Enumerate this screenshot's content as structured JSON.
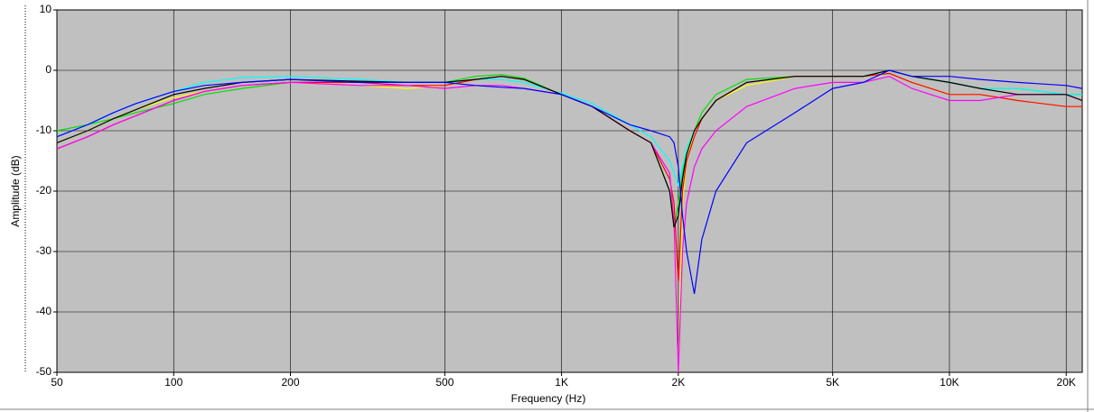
{
  "chart_data": {
    "type": "line",
    "xlabel": "Frequency (Hz)",
    "ylabel": "Amplitude (dB)",
    "xscale": "log",
    "grid": true,
    "background": "#c0c0c0",
    "xlim": [
      50,
      22000
    ],
    "ylim": [
      -50,
      10
    ],
    "xticks": [
      50,
      100,
      200,
      500,
      {
        "value": 1000,
        "label": "1K"
      },
      {
        "value": 2000,
        "label": "2K"
      },
      {
        "value": 5000,
        "label": "5K"
      },
      {
        "value": 10000,
        "label": "10K"
      },
      {
        "value": 20000,
        "label": "20K"
      }
    ],
    "yticks": [
      10,
      0,
      -10,
      -20,
      -30,
      -40,
      -50
    ],
    "x": [
      50,
      60,
      70,
      80,
      100,
      120,
      150,
      200,
      300,
      400,
      500,
      600,
      700,
      800,
      1000,
      1200,
      1500,
      1700,
      1900,
      1950,
      2000,
      2050,
      2100,
      2200,
      2300,
      2500,
      3000,
      4000,
      5000,
      6000,
      7000,
      8000,
      10000,
      12000,
      15000,
      20000,
      22000
    ],
    "series": [
      {
        "color": "#00e000",
        "values": [
          -10,
          -9,
          -8,
          -7,
          -5.5,
          -4,
          -3,
          -2,
          -2,
          -2,
          -2,
          -1,
          -0.7,
          -1.3,
          -4,
          -6,
          -10,
          -12,
          -20,
          -26,
          -22,
          -17,
          -13,
          -10,
          -7,
          -4,
          -1.5,
          -1,
          -1,
          -1,
          0,
          -1,
          -2,
          -3,
          -3,
          -4,
          -4
        ]
      },
      {
        "color": "#00ffff",
        "values": [
          -11,
          -9,
          -7,
          -5.5,
          -3.5,
          -2,
          -1.2,
          -1,
          -1.5,
          -2,
          -2,
          -1.5,
          -1.5,
          -2,
          -3.8,
          -5.5,
          -9,
          -11,
          -15,
          -17,
          -19,
          -16,
          -13,
          -10,
          -8,
          -5,
          -2,
          -1,
          -1,
          -1,
          0,
          -1,
          -2,
          -3,
          -3,
          -4,
          -4
        ]
      },
      {
        "color": "#ffff00",
        "values": [
          -12,
          -10,
          -8,
          -6.5,
          -4.5,
          -3.5,
          -2.5,
          -2,
          -2.5,
          -3,
          -2.5,
          -1.5,
          -1,
          -1.5,
          -4,
          -6,
          -10,
          -12,
          -18,
          -24,
          -50,
          -22,
          -15,
          -10,
          -8,
          -5,
          -2.5,
          -1,
          -1,
          -1,
          -0.5,
          -2,
          -4,
          -4,
          -5,
          -6,
          -6
        ]
      },
      {
        "color": "#ff0000",
        "values": [
          -13,
          -11,
          -9,
          -7.5,
          -5,
          -3.5,
          -2.5,
          -2,
          -2,
          -2.5,
          -2.5,
          -1.5,
          -1,
          -1.5,
          -4,
          -6,
          -10,
          -12,
          -18,
          -22,
          -35,
          -20,
          -15,
          -11,
          -8,
          -5,
          -2,
          -1,
          -1,
          -1,
          -0.5,
          -2,
          -4,
          -4,
          -5,
          -6,
          -6
        ]
      },
      {
        "color": "#ff00ff",
        "values": [
          -13,
          -11,
          -9,
          -7.5,
          -5,
          -3.5,
          -2.5,
          -2,
          -2.5,
          -2.5,
          -3,
          -2.5,
          -2.5,
          -3,
          -4,
          -6,
          -10,
          -12,
          -17,
          -25,
          -50,
          -30,
          -22,
          -16,
          -13,
          -10,
          -6,
          -3,
          -2,
          -2,
          -1,
          -3,
          -5,
          -5,
          -4,
          -4,
          -5
        ]
      },
      {
        "color": "#000000",
        "values": [
          -12,
          -10,
          -8,
          -6.5,
          -4,
          -3,
          -2,
          -1.5,
          -1.8,
          -2,
          -2,
          -1.5,
          -1,
          -1.5,
          -4,
          -6,
          -10,
          -12,
          -20,
          -26,
          -24,
          -18,
          -14,
          -10,
          -8,
          -5,
          -2,
          -1,
          -1,
          -1,
          0,
          -1,
          -2,
          -3,
          -4,
          -4,
          -5
        ]
      },
      {
        "color": "#0000ff",
        "values": [
          -11,
          -9,
          -7,
          -5.5,
          -3.5,
          -2.5,
          -2,
          -1.5,
          -2,
          -2,
          -2,
          -2.5,
          -2.8,
          -3,
          -4,
          -6,
          -9,
          -10,
          -11,
          -12,
          -16,
          -24,
          -30,
          -37,
          -28,
          -20,
          -12,
          -7,
          -3,
          -2,
          0,
          -1,
          -1,
          -1.5,
          -2,
          -2.5,
          -3
        ]
      }
    ]
  }
}
